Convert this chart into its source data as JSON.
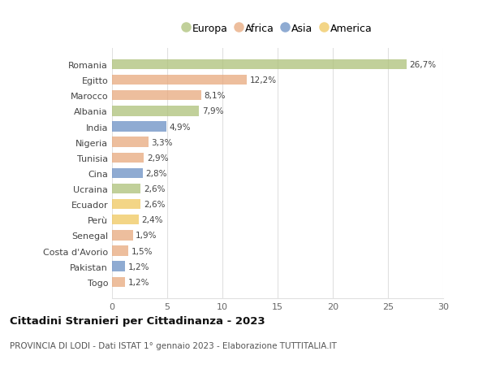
{
  "categories": [
    "Romania",
    "Egitto",
    "Marocco",
    "Albania",
    "India",
    "Nigeria",
    "Tunisia",
    "Cina",
    "Ucraina",
    "Ecuador",
    "Perù",
    "Senegal",
    "Costa d'Avorio",
    "Pakistan",
    "Togo"
  ],
  "values": [
    26.7,
    12.2,
    8.1,
    7.9,
    4.9,
    3.3,
    2.9,
    2.8,
    2.6,
    2.6,
    2.4,
    1.9,
    1.5,
    1.2,
    1.2
  ],
  "labels": [
    "26,7%",
    "12,2%",
    "8,1%",
    "7,9%",
    "4,9%",
    "3,3%",
    "2,9%",
    "2,8%",
    "2,6%",
    "2,6%",
    "2,4%",
    "1,9%",
    "1,5%",
    "1,2%",
    "1,2%"
  ],
  "continents": [
    "Europa",
    "Africa",
    "Africa",
    "Europa",
    "Asia",
    "Africa",
    "Africa",
    "Asia",
    "Europa",
    "America",
    "America",
    "Africa",
    "Africa",
    "Asia",
    "Africa"
  ],
  "continent_colors": {
    "Europa": "#adc178",
    "Africa": "#e8a87c",
    "Asia": "#6a8fc4",
    "America": "#f0c75e"
  },
  "legend_order": [
    "Europa",
    "Africa",
    "Asia",
    "America"
  ],
  "title": "Cittadini Stranieri per Cittadinanza - 2023",
  "subtitle": "PROVINCIA DI LODI - Dati ISTAT 1° gennaio 2023 - Elaborazione TUTTITALIA.IT",
  "xlim": [
    0,
    30
  ],
  "xticks": [
    0,
    5,
    10,
    15,
    20,
    25,
    30
  ],
  "background_color": "#ffffff",
  "grid_color": "#e0e0e0",
  "bar_alpha": 0.75
}
